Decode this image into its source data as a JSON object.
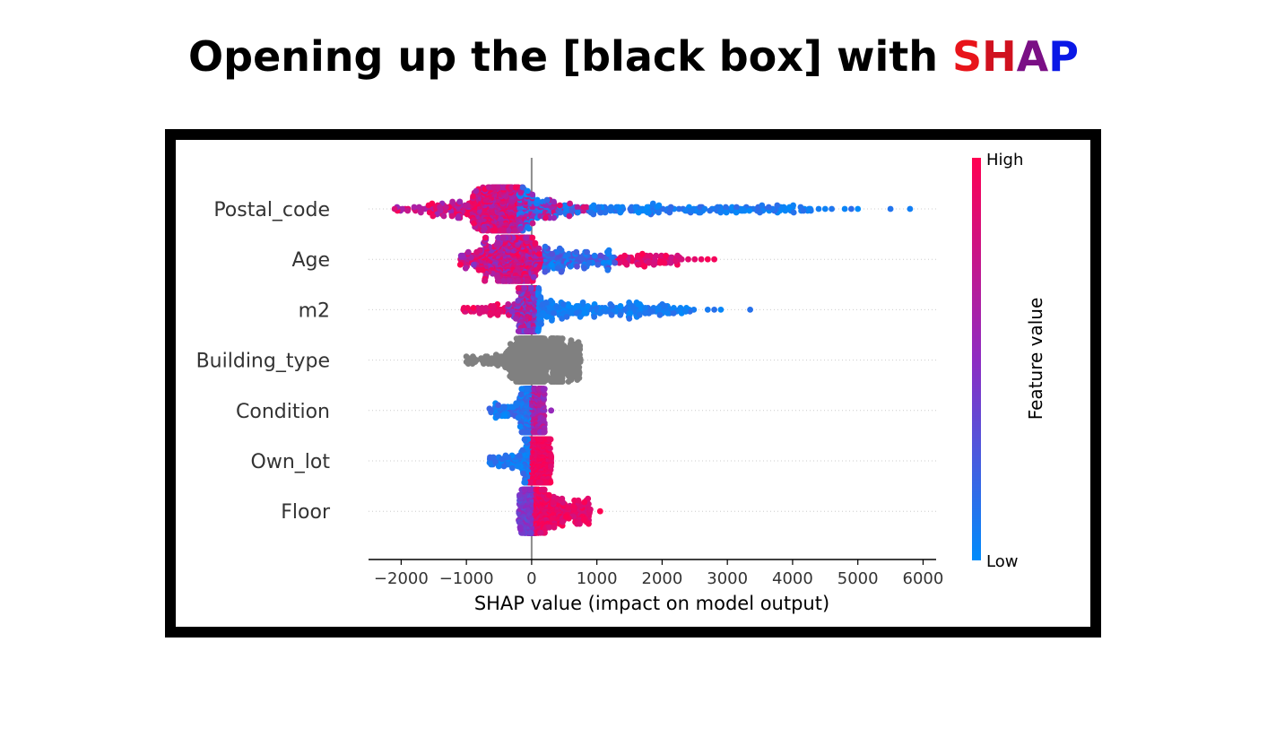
{
  "title": {
    "prefix": "Opening up the [black box] with ",
    "brand": [
      {
        "text": "S",
        "color": "#e8141a"
      },
      {
        "text": "H",
        "color": "#d0111f"
      },
      {
        "text": "A",
        "color": "#7a0f85"
      },
      {
        "text": "P",
        "color": "#0a18e6"
      }
    ]
  },
  "chart_data": {
    "type": "scatter",
    "subtype": "shap_beeswarm",
    "xlabel": "SHAP value (impact on model output)",
    "xlim": [
      -2500,
      6200
    ],
    "xticks": [
      -2000,
      -1000,
      0,
      1000,
      2000,
      3000,
      4000,
      5000,
      6000
    ],
    "xtick_labels": [
      "−2000",
      "−1000",
      "0",
      "1000",
      "2000",
      "3000",
      "4000",
      "5000",
      "6000"
    ],
    "features": [
      "Postal_code",
      "Age",
      "m2",
      "Building_type",
      "Condition",
      "Own_lot",
      "Floor"
    ],
    "colorbar": {
      "label": "Feature value",
      "high_label": "High",
      "low_label": "Low",
      "high_color": "#ff0051",
      "low_color": "#008bfb"
    },
    "distributions": [
      {
        "feature": "Postal_code",
        "min": -2100,
        "max": 5800,
        "core": [
          -1100,
          200
        ],
        "tail_to": 4300,
        "outliers": [
          -2100,
          -1900,
          -1800,
          4400,
          4500,
          4600,
          4800,
          4900,
          5000,
          5500,
          5800
        ],
        "colors": "mixed_high_left"
      },
      {
        "feature": "Age",
        "min": -1100,
        "max": 2800,
        "core": [
          -700,
          200
        ],
        "tail_to": 2300,
        "outliers": [
          2400,
          2500,
          2600,
          2700,
          2800
        ],
        "colors": "high_left_high_right"
      },
      {
        "feature": "m2",
        "min": -1100,
        "max": 3350,
        "core": [
          -200,
          100
        ],
        "tail_to": 2500,
        "outliers": [
          2700,
          2800,
          2900,
          3350
        ],
        "colors": "high_left_low_right"
      },
      {
        "feature": "Building_type",
        "min": -1000,
        "max": 750,
        "core": [
          -300,
          300
        ],
        "tail_to": 750,
        "outliers": [
          -1000,
          -900
        ],
        "colors": "gray"
      },
      {
        "feature": "Condition",
        "min": -650,
        "max": 300,
        "core": [
          -150,
          100
        ],
        "tail_to": 200,
        "outliers": [
          300
        ],
        "colors": "low_left_purple_right"
      },
      {
        "feature": "Own_lot",
        "min": -650,
        "max": 320,
        "core": [
          -100,
          100
        ],
        "tail_to": 300,
        "outliers": [],
        "colors": "low_left_high_right"
      },
      {
        "feature": "Floor",
        "min": -200,
        "max": 1050,
        "core": [
          -100,
          100
        ],
        "tail_to": 900,
        "outliers": [
          1050
        ],
        "colors": "purple_left_high_right"
      }
    ]
  }
}
